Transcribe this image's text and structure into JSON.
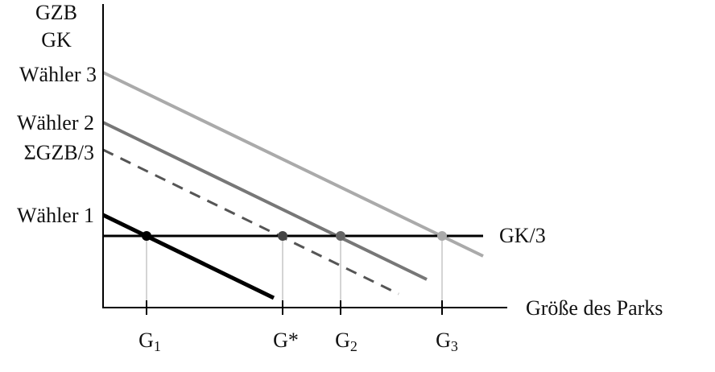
{
  "axes": {
    "y_label_1": "GZB",
    "y_label_2": "GK",
    "x_label": "Größe des Parks"
  },
  "curves": [
    {
      "label": "Wähler 3"
    },
    {
      "label": "Wähler 2"
    },
    {
      "label": "ΣGZB/3"
    },
    {
      "label": "Wähler 1"
    },
    {
      "label": "GK/3"
    }
  ],
  "points": [
    {
      "main": "G",
      "sub": "1"
    },
    {
      "main": "G*"
    },
    {
      "main": "G",
      "sub": "2"
    },
    {
      "main": "G",
      "sub": "3"
    }
  ]
}
